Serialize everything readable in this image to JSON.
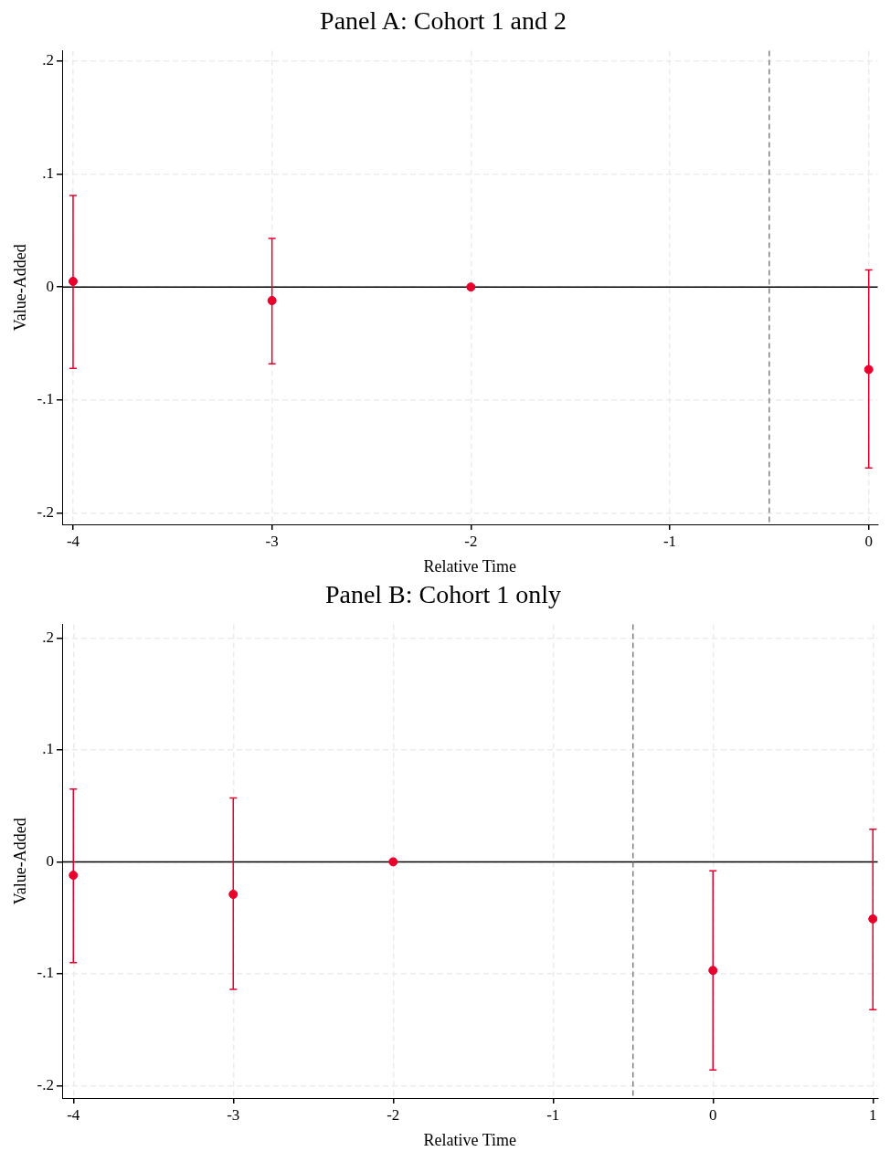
{
  "chart_data": [
    {
      "type": "scatter",
      "title": "Panel A: Cohort 1 and 2",
      "xlabel": "Relative Time",
      "ylabel": "Value-Added",
      "series": [
        {
          "color": "#e8002d",
          "x": [
            -4,
            -3,
            -2,
            0
          ],
          "values": [
            0.005,
            -0.012,
            0,
            -0.073
          ],
          "errors": [
            [
              -0.072,
              0.081
            ],
            [
              -0.068,
              0.043
            ],
            null,
            [
              -0.16,
              0.015
            ]
          ]
        }
      ],
      "xlim": [
        -4.055,
        0.045
      ],
      "xticks": [
        -4,
        -3,
        -2,
        -1,
        0
      ],
      "ylim": [
        -0.21,
        0.209
      ],
      "yticks": [
        {
          "value": -0.2,
          "label": "-.2"
        },
        {
          "value": -0.1,
          "label": "-.1"
        },
        0,
        {
          "value": 0.1,
          "label": ".1"
        },
        {
          "value": 0.2,
          "label": ".2"
        }
      ],
      "ref_lines": [
        {
          "axis": "y",
          "value": 0,
          "color": "#000000",
          "line_style": "solid"
        },
        {
          "axis": "x",
          "value": -0.5,
          "color": "#808080",
          "line_style": "dashed"
        }
      ],
      "grid": true,
      "legend": false,
      "marker": "circle"
    },
    {
      "type": "scatter",
      "title": "Panel B: Cohort 1 only",
      "xlabel": "Relative Time",
      "ylabel": "Value-Added",
      "series": [
        {
          "color": "#e8002d",
          "x": [
            -4,
            -3,
            -2,
            0,
            1
          ],
          "values": [
            -0.012,
            -0.029,
            0,
            -0.097,
            -0.051
          ],
          "errors": [
            [
              -0.09,
              0.065
            ],
            [
              -0.114,
              0.057
            ],
            null,
            [
              -0.186,
              -0.008
            ],
            [
              -0.132,
              0.029
            ]
          ]
        }
      ],
      "xlim": [
        -4.07,
        1.03
      ],
      "xticks": [
        -4,
        -3,
        -2,
        -1,
        0,
        1
      ],
      "ylim": [
        -0.211,
        0.212
      ],
      "yticks": [
        {
          "value": -0.2,
          "label": "-.2"
        },
        {
          "value": -0.1,
          "label": "-.1"
        },
        0,
        {
          "value": 0.1,
          "label": ".1"
        },
        {
          "value": 0.2,
          "label": ".2"
        }
      ],
      "ref_lines": [
        {
          "axis": "y",
          "value": 0,
          "color": "#000000",
          "line_style": "solid"
        },
        {
          "axis": "x",
          "value": -0.5,
          "color": "#808080",
          "line_style": "dashed"
        }
      ],
      "grid": true,
      "legend": false,
      "marker": "circle"
    }
  ]
}
